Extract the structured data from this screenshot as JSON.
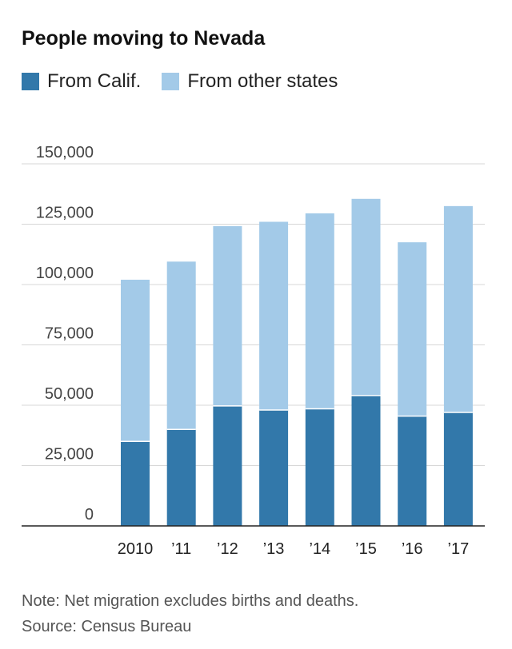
{
  "chart_data": {
    "type": "bar",
    "stacked": true,
    "title": "People moving to Nevada",
    "categories": [
      "2010",
      "’11",
      "’12",
      "’13",
      "’14",
      "’15",
      "’16",
      "’17"
    ],
    "series": [
      {
        "name": "From Calif.",
        "color": "#3278aa",
        "values": [
          35000,
          40000,
          49700,
          48000,
          48500,
          54000,
          45500,
          47000
        ]
      },
      {
        "name": "From other states",
        "color": "#a3cae8",
        "values": [
          67000,
          69500,
          74500,
          78000,
          81000,
          81500,
          72000,
          85500
        ]
      }
    ],
    "yticks": [
      "0",
      "25,000",
      "50,000",
      "75,000",
      "100,000",
      "125,000",
      "150,000"
    ],
    "ylim": [
      0,
      150000
    ],
    "grid": true
  },
  "notes": {
    "note": "Note: Net migration excludes births and deaths.",
    "source": "Source: Census Bureau"
  }
}
